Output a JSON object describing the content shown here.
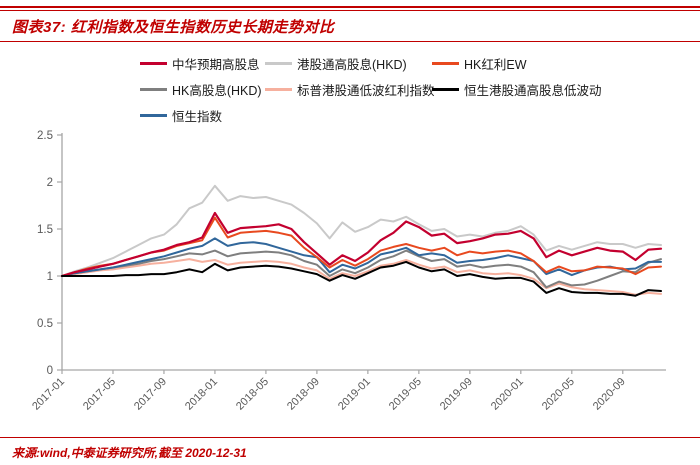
{
  "header": {
    "title": "图表37: 红利指数及恒生指数历史长期走势对比"
  },
  "footer": {
    "source": "来源:wind,中泰证券研究所,截至 2020-12-31"
  },
  "colors": {
    "accent_red": "#c00000",
    "axis_line": "#a6a6a6",
    "tick_label": "#595959",
    "legend_text": "#1a1a1a"
  },
  "chart_data": {
    "type": "line",
    "title": "红利指数及恒生指数历史长期走势对比",
    "xlabel": "",
    "ylabel": "",
    "ylim": [
      0,
      2.5
    ],
    "yticks": [
      0,
      0.5,
      1,
      1.5,
      2,
      2.5
    ],
    "grid": false,
    "legend_position": "top",
    "x_tick_every": 4,
    "x": [
      "2017-01",
      "2017-02",
      "2017-03",
      "2017-04",
      "2017-05",
      "2017-06",
      "2017-07",
      "2017-08",
      "2017-09",
      "2017-10",
      "2017-11",
      "2017-12",
      "2018-01",
      "2018-02",
      "2018-03",
      "2018-04",
      "2018-05",
      "2018-06",
      "2018-07",
      "2018-08",
      "2018-09",
      "2018-10",
      "2018-11",
      "2018-12",
      "2019-01",
      "2019-02",
      "2019-03",
      "2019-04",
      "2019-05",
      "2019-06",
      "2019-07",
      "2019-08",
      "2019-09",
      "2019-10",
      "2019-11",
      "2019-12",
      "2020-01",
      "2020-02",
      "2020-03",
      "2020-04",
      "2020-05",
      "2020-06",
      "2020-07",
      "2020-08",
      "2020-09",
      "2020-10",
      "2020-11",
      "2020-12"
    ],
    "series": [
      {
        "name": "中华预期高股息",
        "color": "#c3002f",
        "values": [
          1.0,
          1.04,
          1.07,
          1.1,
          1.13,
          1.17,
          1.21,
          1.25,
          1.28,
          1.33,
          1.36,
          1.41,
          1.67,
          1.46,
          1.51,
          1.52,
          1.53,
          1.55,
          1.5,
          1.36,
          1.24,
          1.12,
          1.22,
          1.16,
          1.25,
          1.38,
          1.46,
          1.58,
          1.52,
          1.43,
          1.45,
          1.35,
          1.37,
          1.4,
          1.44,
          1.45,
          1.48,
          1.4,
          1.2,
          1.27,
          1.22,
          1.26,
          1.3,
          1.27,
          1.26,
          1.17,
          1.28,
          1.29
        ]
      },
      {
        "name": "港股通高股息(HKD)",
        "color": "#c9c9c9",
        "values": [
          1.0,
          1.05,
          1.09,
          1.14,
          1.19,
          1.26,
          1.33,
          1.4,
          1.44,
          1.55,
          1.72,
          1.78,
          1.96,
          1.8,
          1.85,
          1.83,
          1.84,
          1.8,
          1.76,
          1.67,
          1.56,
          1.4,
          1.57,
          1.47,
          1.52,
          1.6,
          1.58,
          1.63,
          1.55,
          1.48,
          1.5,
          1.42,
          1.44,
          1.42,
          1.46,
          1.48,
          1.53,
          1.44,
          1.27,
          1.32,
          1.28,
          1.32,
          1.36,
          1.34,
          1.34,
          1.3,
          1.34,
          1.33
        ]
      },
      {
        "name": "HK红利EW",
        "color": "#e8491f",
        "values": [
          1.0,
          1.04,
          1.08,
          1.11,
          1.13,
          1.17,
          1.21,
          1.25,
          1.27,
          1.32,
          1.35,
          1.38,
          1.62,
          1.41,
          1.46,
          1.47,
          1.48,
          1.46,
          1.43,
          1.3,
          1.2,
          1.09,
          1.17,
          1.11,
          1.18,
          1.27,
          1.31,
          1.34,
          1.3,
          1.27,
          1.3,
          1.22,
          1.26,
          1.24,
          1.26,
          1.27,
          1.24,
          1.16,
          1.04,
          1.1,
          1.05,
          1.06,
          1.1,
          1.09,
          1.08,
          1.02,
          1.09,
          1.1
        ]
      },
      {
        "name": "HK高股息(HKD)",
        "color": "#7f7f7f",
        "values": [
          1.0,
          1.03,
          1.05,
          1.07,
          1.09,
          1.11,
          1.13,
          1.16,
          1.18,
          1.21,
          1.24,
          1.23,
          1.27,
          1.21,
          1.24,
          1.25,
          1.26,
          1.25,
          1.22,
          1.16,
          1.12,
          1.0,
          1.07,
          1.03,
          1.09,
          1.17,
          1.21,
          1.27,
          1.21,
          1.16,
          1.18,
          1.1,
          1.12,
          1.09,
          1.11,
          1.12,
          1.1,
          1.04,
          0.88,
          0.94,
          0.9,
          0.91,
          0.95,
          1.0,
          1.05,
          1.04,
          1.14,
          1.18
        ]
      },
      {
        "name": "标普港股通低波红利指数",
        "color": "#f6b09e",
        "values": [
          1.0,
          1.02,
          1.04,
          1.06,
          1.07,
          1.09,
          1.11,
          1.13,
          1.14,
          1.16,
          1.18,
          1.15,
          1.17,
          1.12,
          1.14,
          1.15,
          1.16,
          1.15,
          1.13,
          1.09,
          1.06,
          0.97,
          1.03,
          1.0,
          1.05,
          1.11,
          1.13,
          1.17,
          1.12,
          1.08,
          1.1,
          1.04,
          1.06,
          1.03,
          1.02,
          1.03,
          1.01,
          0.97,
          0.87,
          0.92,
          0.88,
          0.86,
          0.85,
          0.84,
          0.83,
          0.8,
          0.82,
          0.81
        ]
      },
      {
        "name": "恒生港股通高股息低波动",
        "color": "#000000",
        "values": [
          1.0,
          1.0,
          1.0,
          1.0,
          1.0,
          1.01,
          1.01,
          1.02,
          1.02,
          1.04,
          1.07,
          1.04,
          1.13,
          1.06,
          1.09,
          1.1,
          1.11,
          1.1,
          1.08,
          1.05,
          1.02,
          0.95,
          1.01,
          0.97,
          1.03,
          1.09,
          1.11,
          1.15,
          1.09,
          1.05,
          1.07,
          1.0,
          1.02,
          0.99,
          0.97,
          0.98,
          0.98,
          0.94,
          0.82,
          0.87,
          0.83,
          0.82,
          0.82,
          0.81,
          0.81,
          0.79,
          0.85,
          0.84
        ]
      },
      {
        "name": "恒生指数",
        "color": "#31679b",
        "values": [
          1.0,
          1.03,
          1.05,
          1.07,
          1.09,
          1.12,
          1.15,
          1.18,
          1.21,
          1.25,
          1.29,
          1.32,
          1.4,
          1.32,
          1.35,
          1.36,
          1.34,
          1.3,
          1.26,
          1.22,
          1.2,
          1.04,
          1.12,
          1.08,
          1.14,
          1.23,
          1.26,
          1.3,
          1.22,
          1.24,
          1.22,
          1.14,
          1.16,
          1.17,
          1.19,
          1.22,
          1.19,
          1.16,
          1.02,
          1.07,
          1.01,
          1.06,
          1.09,
          1.1,
          1.07,
          1.08,
          1.15,
          1.15
        ]
      }
    ]
  }
}
